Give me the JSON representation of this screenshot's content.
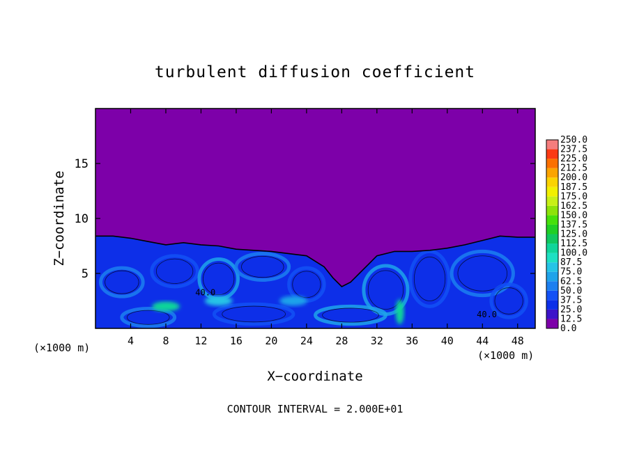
{
  "chart_data": {
    "type": "heatmap",
    "title": "turbulent diffusion coefficient",
    "xlabel": "X−coordinate",
    "ylabel": "Z−coordinate",
    "x_unit_left": "(×1000 m)",
    "x_unit_right": "(×1000 m)",
    "footer": "CONTOUR INTERVAL = 2.000E+01",
    "xlim": [
      0,
      50
    ],
    "ylim": [
      0,
      20
    ],
    "x_ticks": [
      4,
      8,
      12,
      16,
      20,
      24,
      28,
      32,
      36,
      40,
      44,
      48
    ],
    "y_ticks": [
      5,
      10,
      15
    ],
    "grid": false,
    "legend_placement": "right",
    "boundary_layer_top": [
      [
        0,
        8.4
      ],
      [
        2,
        8.4
      ],
      [
        4,
        8.2
      ],
      [
        6,
        7.9
      ],
      [
        8,
        7.6
      ],
      [
        10,
        7.8
      ],
      [
        12,
        7.6
      ],
      [
        14,
        7.5
      ],
      [
        16,
        7.2
      ],
      [
        18,
        7.1
      ],
      [
        20,
        7.0
      ],
      [
        22,
        6.8
      ],
      [
        24,
        6.6
      ],
      [
        26,
        5.6
      ],
      [
        27,
        4.6
      ],
      [
        28,
        3.8
      ],
      [
        29,
        4.2
      ],
      [
        30,
        5.0
      ],
      [
        31,
        5.8
      ],
      [
        32,
        6.6
      ],
      [
        34,
        7.0
      ],
      [
        36,
        7.0
      ],
      [
        38,
        7.1
      ],
      [
        40,
        7.3
      ],
      [
        42,
        7.6
      ],
      [
        44,
        8.0
      ],
      [
        46,
        8.4
      ],
      [
        48,
        8.3
      ],
      [
        50,
        8.3
      ]
    ],
    "colorbar": {
      "levels": [
        "0.0",
        "12.5",
        "25.0",
        "37.5",
        "50.0",
        "62.5",
        "75.0",
        "87.5",
        "100.0",
        "112.5",
        "125.0",
        "137.5",
        "150.0",
        "162.5",
        "175.0",
        "187.5",
        "200.0",
        "212.5",
        "225.0",
        "237.5",
        "250.0"
      ],
      "colors": [
        "#7d00a9",
        "#3d13c9",
        "#0d2fe8",
        "#1351f5",
        "#1c7ff0",
        "#1fa3ea",
        "#25c4e6",
        "#1ee0c3",
        "#10d59a",
        "#10c85f",
        "#1fcf25",
        "#46e00b",
        "#8de30a",
        "#c8f016",
        "#f2f000",
        "#fbd300",
        "#fba400",
        "#fb7000",
        "#fb3a14",
        "#f57d7d"
      ]
    },
    "features": [
      {
        "x": 8,
        "z": 2.0,
        "value": 100
      },
      {
        "x": 34.6,
        "z": 1.5,
        "value": 100
      },
      {
        "x": 14,
        "z": 2.5,
        "value": 75
      },
      {
        "x": 22.5,
        "z": 2.5,
        "value": 62.5
      }
    ],
    "contour_labels": [
      {
        "x": 12.5,
        "z": 3.0,
        "text": "40.0"
      },
      {
        "x": 44.5,
        "z": 1.0,
        "text": "40.0"
      }
    ]
  }
}
